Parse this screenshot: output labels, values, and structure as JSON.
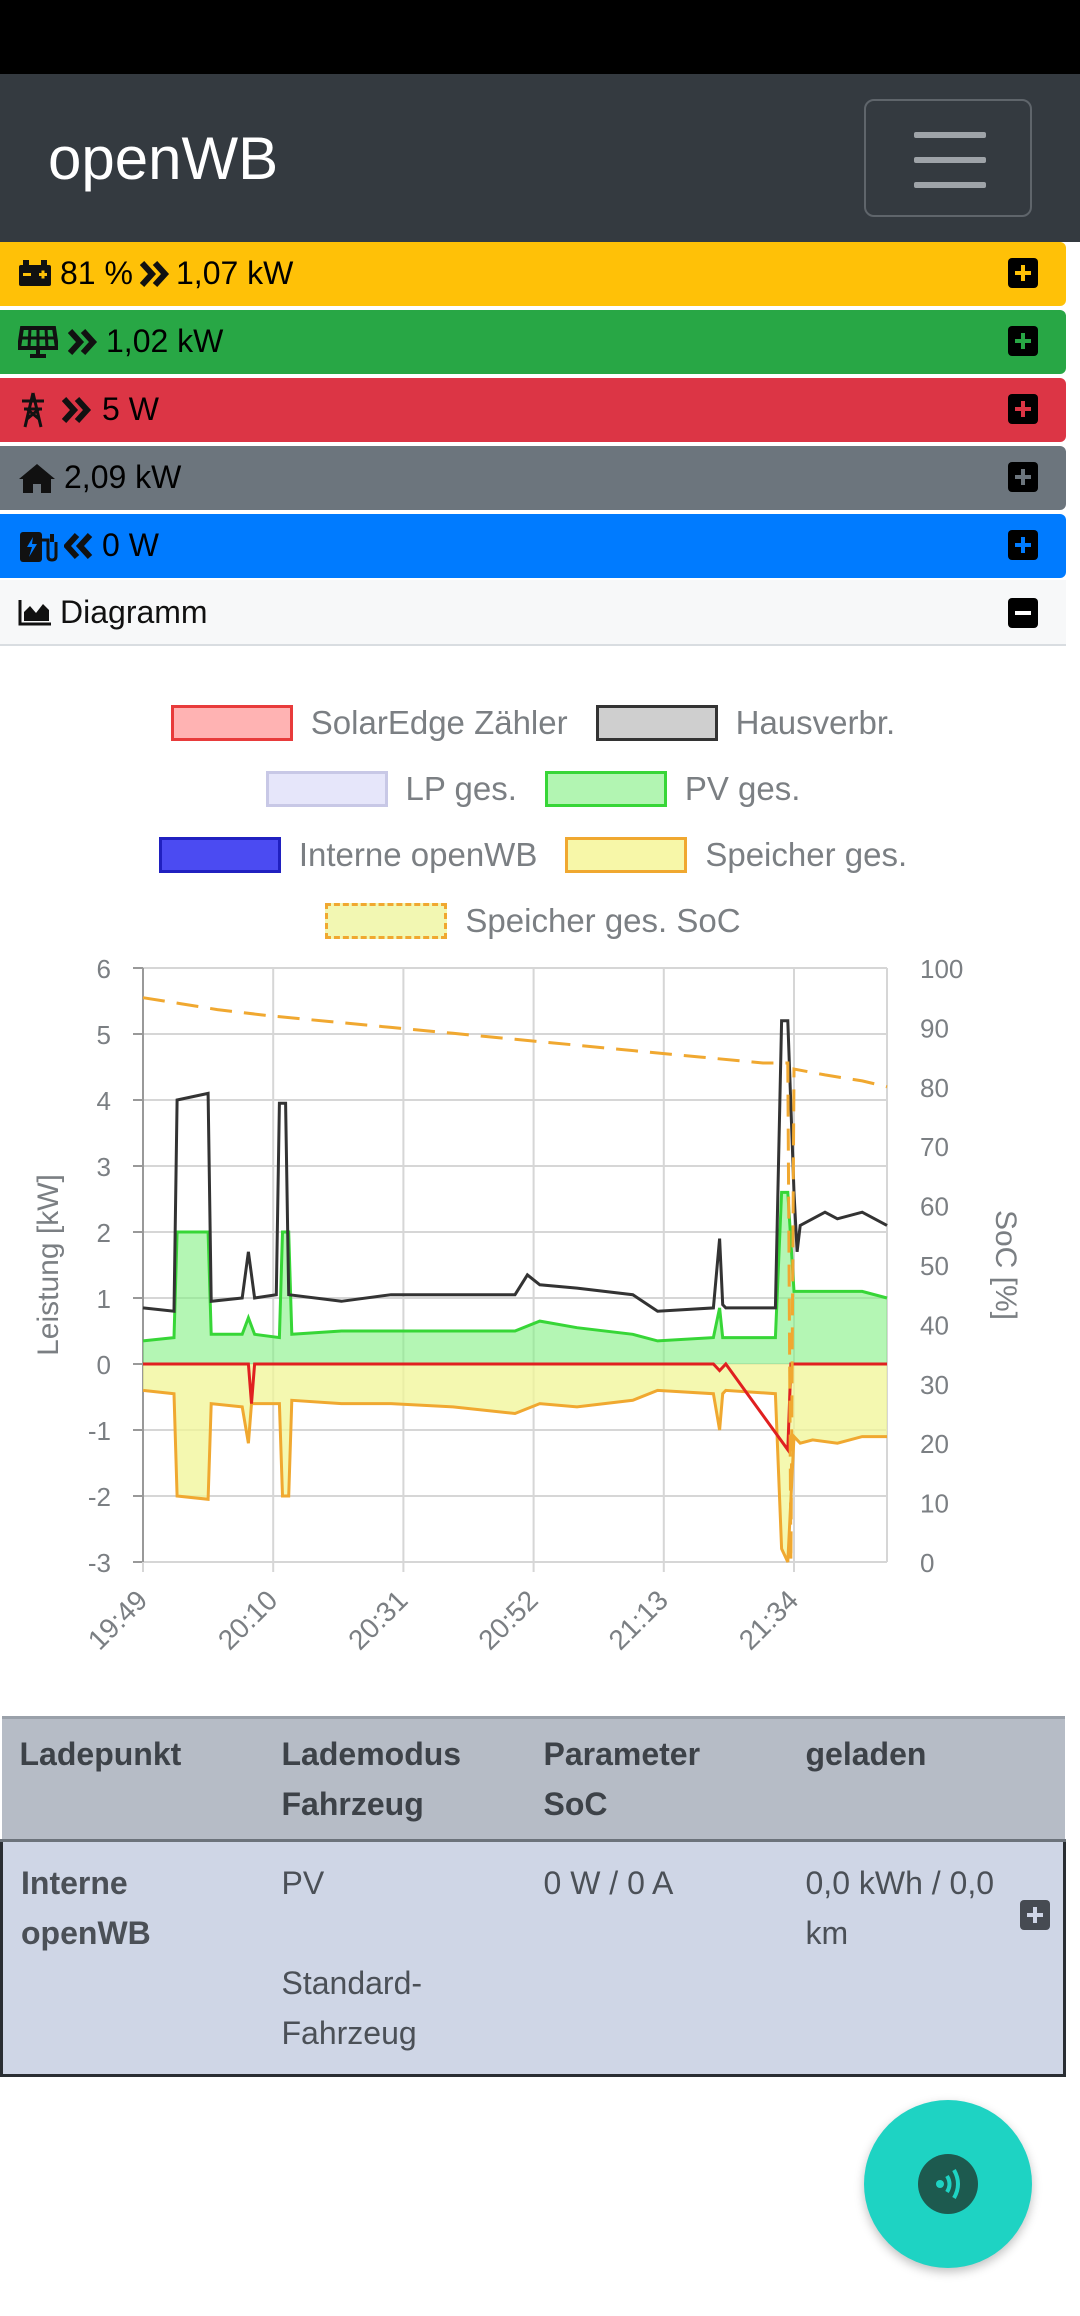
{
  "app": {
    "title": "openWB"
  },
  "bars": [
    {
      "id": "battery",
      "icon": "battery-icon",
      "arrow": "double-chevron-right-icon",
      "text": "81 %",
      "text2": "1,07 kW",
      "color": "#ffc107"
    },
    {
      "id": "pv",
      "icon": "solar-panel-icon",
      "arrow": "double-chevron-right-icon",
      "text": "1,02 kW",
      "color": "#28a745"
    },
    {
      "id": "grid",
      "icon": "power-tower-icon",
      "arrow": "double-chevron-right-icon",
      "text": "5 W",
      "color": "#dc3545"
    },
    {
      "id": "house",
      "icon": "home-icon",
      "text": "2,09 kW",
      "color": "#6c757d"
    },
    {
      "id": "charge",
      "icon": "charging-station-icon",
      "arrow": "double-chevron-left-icon",
      "text": "0 W",
      "color": "#007bff"
    }
  ],
  "diagram": {
    "label": "Diagramm",
    "icon": "area-chart-icon"
  },
  "legend": [
    {
      "label": "SolarEdge Zähler",
      "fill": "#ffb3b3",
      "border": "#e83b3b"
    },
    {
      "label": "Hausverbr.",
      "fill": "#cfcfcf",
      "border": "#333333"
    },
    {
      "label": "LP ges.",
      "fill": "#e6e6fa",
      "border": "#c8c8e6"
    },
    {
      "label": "PV ges.",
      "fill": "#b2f5b2",
      "border": "#37d637"
    },
    {
      "label": "Interne openWB",
      "fill": "#4b4bf2",
      "border": "#2020c0"
    },
    {
      "label": "Speicher ges.",
      "fill": "#f7f7a8",
      "border": "#f0a830"
    },
    {
      "label": "Speicher ges. SoC",
      "fill": "#f2f7b2",
      "border": "#f0a830",
      "dashed": true
    }
  ],
  "chart_data": {
    "type": "area",
    "ylabel": "Leistung [kW]",
    "y2label": "SoC [%]",
    "ylim": [
      -3,
      6
    ],
    "y2lim": [
      0,
      100
    ],
    "yticks": [
      "6",
      "5",
      "4",
      "3",
      "2",
      "1",
      "0",
      "-1",
      "-2",
      "-3"
    ],
    "y2ticks": [
      "100",
      "90",
      "80",
      "70",
      "60",
      "50",
      "40",
      "30",
      "20",
      "10",
      "0"
    ],
    "xticks": [
      "19:49",
      "20:10",
      "20:31",
      "20:52",
      "21:13",
      "21:34"
    ],
    "xrange_min": [
      0,
      120
    ],
    "series": [
      {
        "name": "Hausverbr.",
        "x": [
          0,
          5,
          5.5,
          10.5,
          11,
          16,
          17,
          18,
          21.5,
          22,
          23,
          23.5,
          32,
          40,
          50,
          60,
          62,
          64,
          70,
          79,
          83,
          92,
          93,
          93.5,
          94,
          102,
          103,
          104,
          105,
          105.5,
          106,
          108,
          110,
          112,
          116,
          120
        ],
        "y": [
          0.85,
          0.8,
          4.0,
          4.1,
          0.95,
          1.0,
          1.7,
          1.0,
          1.05,
          3.95,
          3.95,
          1.05,
          0.95,
          1.05,
          1.05,
          1.05,
          1.35,
          1.2,
          1.15,
          1.05,
          0.8,
          0.85,
          1.9,
          0.9,
          0.85,
          0.85,
          5.2,
          5.2,
          2.6,
          1.7,
          2.1,
          2.2,
          2.3,
          2.2,
          2.3,
          2.1
        ]
      },
      {
        "name": "PV ges.",
        "x": [
          0,
          5,
          5.5,
          10.5,
          11,
          16,
          17,
          18,
          22,
          22.5,
          23.5,
          24,
          32,
          40,
          50,
          60,
          64,
          70,
          79,
          83,
          92,
          93,
          93.5,
          94,
          102,
          103,
          104,
          105,
          106,
          108,
          116,
          120
        ],
        "y": [
          0.35,
          0.4,
          2.0,
          2.0,
          0.45,
          0.45,
          0.7,
          0.45,
          0.4,
          2.0,
          2.0,
          0.45,
          0.5,
          0.5,
          0.5,
          0.5,
          0.65,
          0.55,
          0.45,
          0.35,
          0.4,
          0.85,
          0.4,
          0.4,
          0.4,
          2.6,
          2.6,
          1.1,
          1.1,
          1.1,
          1.1,
          1.0
        ]
      },
      {
        "name": "Speicher ges.",
        "x": [
          0,
          5,
          5.5,
          10.5,
          11,
          16,
          17,
          17.5,
          18,
          22,
          22.5,
          23.5,
          24,
          32,
          40,
          50,
          60,
          64,
          70,
          79,
          83,
          92,
          93,
          93.5,
          94,
          102,
          103,
          104,
          105,
          106,
          108,
          112,
          116,
          120
        ],
        "y": [
          -0.4,
          -0.45,
          -2.0,
          -2.05,
          -0.6,
          -0.65,
          -1.2,
          -0.6,
          -0.6,
          -0.6,
          -2.0,
          -2.0,
          -0.55,
          -0.6,
          -0.6,
          -0.65,
          -0.75,
          -0.6,
          -0.65,
          -0.55,
          -0.4,
          -0.45,
          -1.0,
          -0.45,
          -0.4,
          -0.45,
          -2.8,
          -3.0,
          -1.1,
          -1.2,
          -1.15,
          -1.2,
          -1.1,
          -1.1
        ]
      },
      {
        "name": "SolarEdge Zähler",
        "x": [
          0,
          17,
          17.5,
          18,
          60,
          92,
          93,
          94,
          104,
          104.5,
          105,
          106,
          120
        ],
        "y": [
          0.0,
          0.0,
          -0.6,
          0.0,
          0.0,
          0.0,
          -0.1,
          0.0,
          -1.3,
          0.0,
          0.0,
          0.0,
          0.0
        ]
      },
      {
        "name": "Speicher ges. SoC",
        "x": [
          0,
          6,
          12,
          20,
          30,
          40,
          50,
          60,
          70,
          80,
          90,
          100,
          104,
          104.5,
          105,
          110,
          116,
          120
        ],
        "y": [
          95,
          94,
          93,
          92,
          91,
          90,
          89,
          88,
          87,
          86,
          85,
          84,
          84,
          0,
          83,
          82,
          81,
          80
        ]
      }
    ]
  },
  "table": {
    "headers": [
      {
        "line1": "Ladepunkt",
        "line2": ""
      },
      {
        "line1": "Lademodus",
        "line2": "Fahrzeug"
      },
      {
        "line1": "Parameter",
        "line2": "SoC"
      },
      {
        "line1": "geladen",
        "line2": ""
      }
    ],
    "rows": [
      {
        "name": "Interne openWB",
        "mode": "PV",
        "vehicle": "Standard-Fahrzeug",
        "param": "0 W / 0 A",
        "charged": "0,0 kWh / 0,0 km"
      }
    ]
  }
}
